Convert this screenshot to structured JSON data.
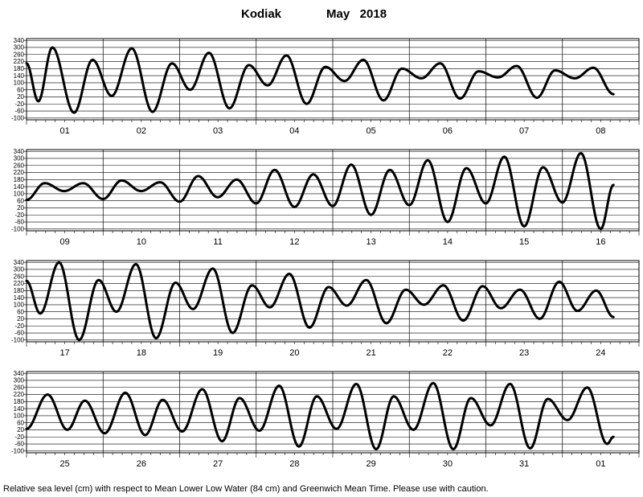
{
  "title": {
    "station": "Kodiak",
    "month_year": "May   2018"
  },
  "footer": "Relative sea level (cm) with respect to Mean Lower Low Water (84 cm) and Greenwich Mean Time. Please use with caution.",
  "chart_data": {
    "type": "line",
    "title": "Kodiak          May   2018",
    "ylabel": "Relative sea level (cm)",
    "y_ticks": [
      340,
      300,
      260,
      220,
      180,
      140,
      100,
      60,
      20,
      -20,
      -60,
      -100
    ],
    "ylim": [
      -110,
      350
    ],
    "grid": "horizontal and daily vertical",
    "hours_per_day": 24,
    "panels": [
      {
        "days": [
          "01",
          "02",
          "03",
          "04",
          "05",
          "06",
          "07",
          "08"
        ],
        "extrema": [
          [
            0,
            210
          ],
          [
            3.7,
            -5
          ],
          [
            8.1,
            300
          ],
          [
            14.9,
            -70
          ],
          [
            20.7,
            230
          ],
          [
            26.7,
            25
          ],
          [
            33,
            295
          ],
          [
            39.5,
            -65
          ],
          [
            45.6,
            210
          ],
          [
            51.3,
            60
          ],
          [
            57.2,
            270
          ],
          [
            63.6,
            -45
          ],
          [
            69.7,
            200
          ],
          [
            75.6,
            85
          ],
          [
            81.5,
            255
          ],
          [
            87.8,
            -20
          ],
          [
            93.7,
            190
          ],
          [
            99.7,
            110
          ],
          [
            105.6,
            230
          ],
          [
            111.9,
            0
          ],
          [
            117.7,
            180
          ],
          [
            123.8,
            125
          ],
          [
            129.7,
            210
          ],
          [
            135.9,
            10
          ],
          [
            141.7,
            165
          ],
          [
            147.8,
            130
          ],
          [
            153.7,
            195
          ],
          [
            160.0,
            15
          ],
          [
            165.7,
            170
          ],
          [
            171.9,
            125
          ],
          [
            177.7,
            185
          ],
          [
            184,
            35
          ]
        ]
      },
      {
        "days": [
          "09",
          "10",
          "11",
          "12",
          "13",
          "14",
          "15",
          "16"
        ],
        "extrema": [
          [
            0,
            65
          ],
          [
            5.7,
            160
          ],
          [
            11.8,
            115
          ],
          [
            17.8,
            160
          ],
          [
            24,
            70
          ],
          [
            29.8,
            175
          ],
          [
            35.9,
            115
          ],
          [
            41.9,
            165
          ],
          [
            48,
            55
          ],
          [
            53.8,
            200
          ],
          [
            59.9,
            80
          ],
          [
            65.9,
            180
          ],
          [
            72,
            45
          ],
          [
            77.8,
            235
          ],
          [
            84,
            25
          ],
          [
            89.9,
            210
          ],
          [
            96,
            30
          ],
          [
            101.8,
            265
          ],
          [
            108,
            -20
          ],
          [
            113.9,
            235
          ],
          [
            120,
            35
          ],
          [
            125.8,
            290
          ],
          [
            132,
            -60
          ],
          [
            137.9,
            245
          ],
          [
            144,
            45
          ],
          [
            149.8,
            310
          ],
          [
            156,
            -85
          ],
          [
            161.9,
            250
          ],
          [
            168,
            50
          ],
          [
            173.8,
            330
          ],
          [
            180,
            -100
          ],
          [
            184,
            150
          ]
        ]
      },
      {
        "days": [
          "17",
          "18",
          "19",
          "20",
          "21",
          "22",
          "23",
          "24"
        ],
        "extrema": [
          [
            0,
            235
          ],
          [
            4.3,
            50
          ],
          [
            10.2,
            340
          ],
          [
            16.5,
            -100
          ],
          [
            22.6,
            240
          ],
          [
            28.2,
            60
          ],
          [
            34.3,
            330
          ],
          [
            40.6,
            -90
          ],
          [
            46.7,
            225
          ],
          [
            52.2,
            75
          ],
          [
            58.4,
            305
          ],
          [
            64.6,
            -60
          ],
          [
            70.7,
            210
          ],
          [
            76.3,
            85
          ],
          [
            82.4,
            275
          ],
          [
            88.7,
            -30
          ],
          [
            94.7,
            200
          ],
          [
            100.4,
            95
          ],
          [
            106.5,
            240
          ],
          [
            112.8,
            -5
          ],
          [
            118.9,
            185
          ],
          [
            124.6,
            100
          ],
          [
            130.7,
            210
          ],
          [
            136.9,
            10
          ],
          [
            143,
            205
          ],
          [
            148.7,
            80
          ],
          [
            154.7,
            185
          ],
          [
            160.9,
            20
          ],
          [
            167,
            230
          ],
          [
            172.7,
            65
          ],
          [
            178.6,
            180
          ],
          [
            184,
            30
          ]
        ]
      },
      {
        "days": [
          "25",
          "26",
          "27",
          "28",
          "29",
          "30",
          "31",
          "01"
        ],
        "extrema": [
          [
            0,
            25
          ],
          [
            6.6,
            220
          ],
          [
            12.8,
            20
          ],
          [
            18.3,
            185
          ],
          [
            24.5,
            0
          ],
          [
            31,
            230
          ],
          [
            37.2,
            -10
          ],
          [
            42.7,
            190
          ],
          [
            48.8,
            10
          ],
          [
            55.1,
            250
          ],
          [
            61.3,
            -45
          ],
          [
            66.8,
            200
          ],
          [
            73,
            15
          ],
          [
            79.2,
            270
          ],
          [
            85.4,
            -75
          ],
          [
            91,
            210
          ],
          [
            97.2,
            25
          ],
          [
            103.4,
            280
          ],
          [
            109.6,
            -90
          ],
          [
            115.1,
            210
          ],
          [
            121.3,
            20
          ],
          [
            127.5,
            285
          ],
          [
            133.8,
            -90
          ],
          [
            139.3,
            200
          ],
          [
            145.5,
            45
          ],
          [
            151.6,
            280
          ],
          [
            157.9,
            -85
          ],
          [
            163.4,
            195
          ],
          [
            169.6,
            75
          ],
          [
            175.8,
            260
          ],
          [
            182,
            -60
          ],
          [
            184,
            -20
          ]
        ]
      }
    ]
  }
}
